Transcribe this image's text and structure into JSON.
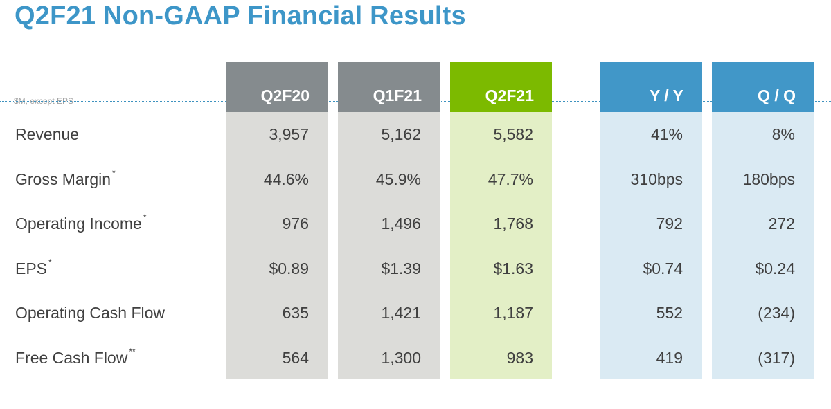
{
  "title": "Q2F21 Non-GAAP Financial Results",
  "units_note": "$M, except EPS",
  "columns": [
    "Q2F20",
    "Q1F21",
    "Q2F21",
    "Y / Y",
    "Q / Q"
  ],
  "column_colors": {
    "gray_header": "#858b8e",
    "gray_body": "#dcdcd9",
    "green_header": "#7cba00",
    "green_body": "#e3efc6",
    "blue_header": "#4197c8",
    "blue_body": "#daeaf3"
  },
  "rows": [
    {
      "label": "Revenue",
      "footnote": "",
      "values": [
        "3,957",
        "5,162",
        "5,582",
        "41%",
        "8%"
      ]
    },
    {
      "label": "Gross Margin",
      "footnote": "*",
      "values": [
        "44.6%",
        "45.9%",
        "47.7%",
        "310bps",
        "180bps"
      ]
    },
    {
      "label": "Operating Income",
      "footnote": "*",
      "values": [
        "976",
        "1,496",
        "1,768",
        "792",
        "272"
      ]
    },
    {
      "label": "EPS",
      "footnote": "*",
      "values": [
        "$0.89",
        "$1.39",
        "$1.63",
        "$0.74",
        "$0.24"
      ]
    },
    {
      "label": "Operating Cash Flow",
      "footnote": "",
      "values": [
        "635",
        "1,421",
        "1,187",
        "552",
        "(234)"
      ]
    },
    {
      "label": "Free Cash Flow",
      "footnote": "**",
      "values": [
        "564",
        "1,300",
        "983",
        "419",
        "(317)"
      ]
    }
  ]
}
